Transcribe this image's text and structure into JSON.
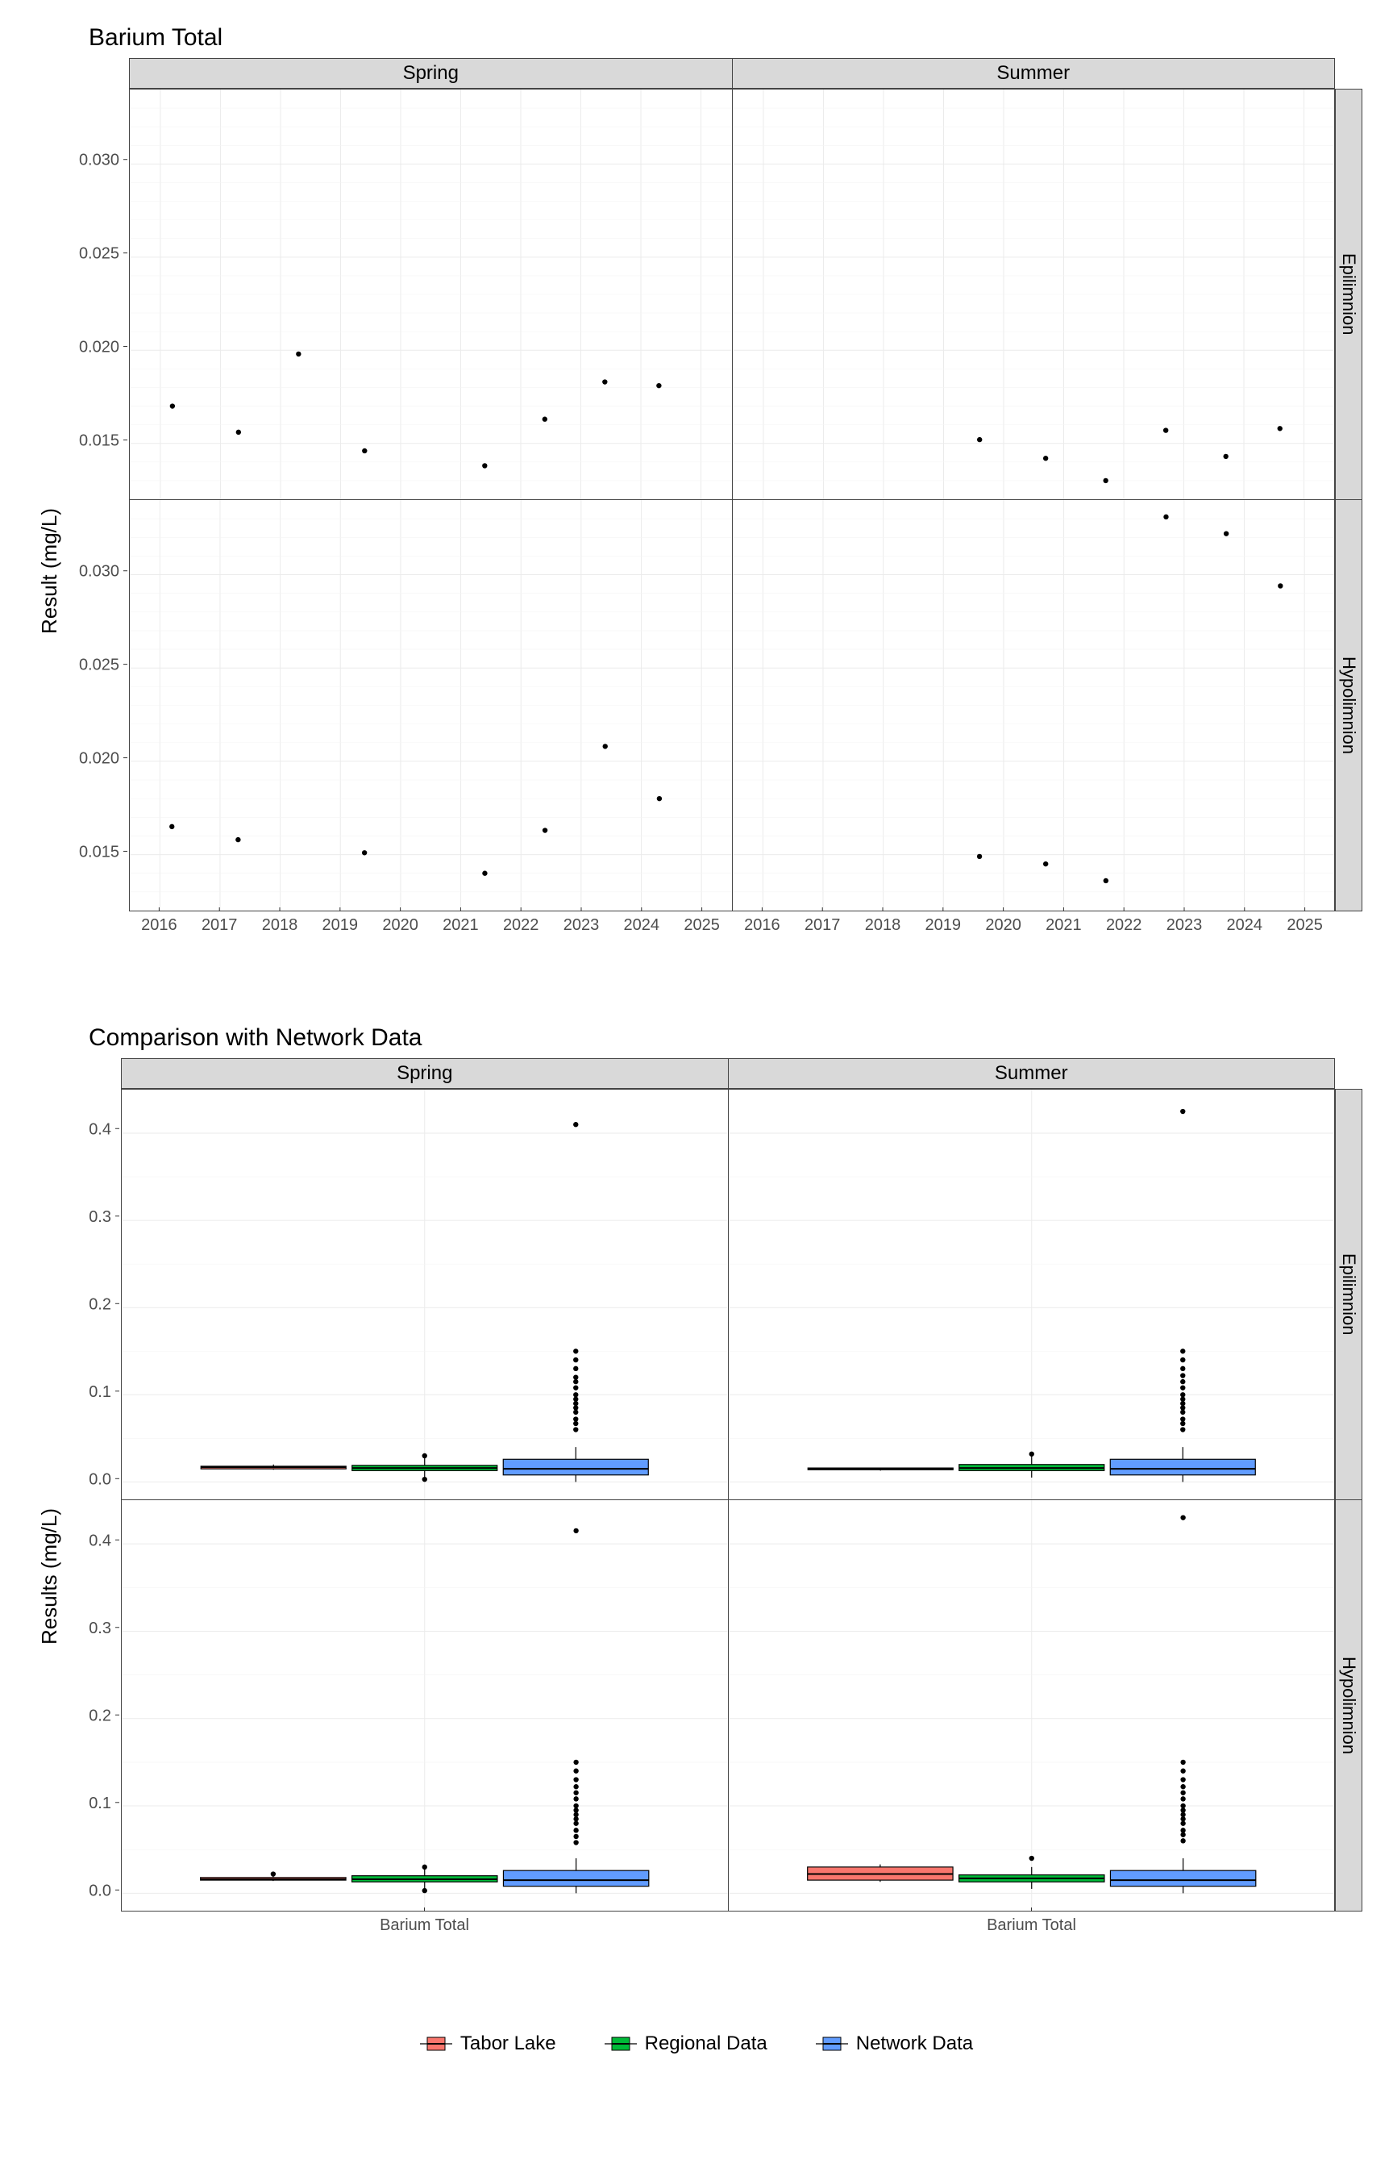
{
  "scatter": {
    "title": "Barium Total",
    "ylabel": "Result (mg/L)",
    "col_labels": [
      "Spring",
      "Summer"
    ],
    "row_labels": [
      "Epilimnion",
      "Hypolimnion"
    ],
    "xlim": [
      2015.5,
      2025.5
    ],
    "xticks": [
      2016,
      2017,
      2018,
      2019,
      2020,
      2021,
      2022,
      2023,
      2024,
      2025
    ],
    "ylim": [
      0.012,
      0.034
    ],
    "yticks": [
      0.015,
      0.02,
      0.025,
      0.03
    ],
    "grid_color": "#ebebeb",
    "point_color": "#000000",
    "point_radius": 3.2,
    "panels": {
      "spring_epi": [
        [
          2016.2,
          0.017
        ],
        [
          2017.3,
          0.0156
        ],
        [
          2018.3,
          0.0198
        ],
        [
          2019.4,
          0.0146
        ],
        [
          2021.4,
          0.0138
        ],
        [
          2022.4,
          0.0163
        ],
        [
          2023.4,
          0.0183
        ],
        [
          2024.3,
          0.0181
        ]
      ],
      "summer_epi": [
        [
          2019.6,
          0.0152
        ],
        [
          2020.7,
          0.0142
        ],
        [
          2021.7,
          0.013
        ],
        [
          2022.7,
          0.0157
        ],
        [
          2023.7,
          0.0143
        ],
        [
          2024.6,
          0.0158
        ]
      ],
      "spring_hypo": [
        [
          2016.2,
          0.0165
        ],
        [
          2017.3,
          0.0158
        ],
        [
          2019.4,
          0.0151
        ],
        [
          2021.4,
          0.014
        ],
        [
          2022.4,
          0.0163
        ],
        [
          2023.4,
          0.0208
        ],
        [
          2024.3,
          0.018
        ]
      ],
      "summer_hypo": [
        [
          2019.6,
          0.0149
        ],
        [
          2020.7,
          0.0145
        ],
        [
          2021.7,
          0.0136
        ],
        [
          2022.7,
          0.0331
        ],
        [
          2023.7,
          0.0322
        ],
        [
          2024.6,
          0.0294
        ]
      ]
    }
  },
  "box": {
    "title": "Comparison with Network Data",
    "ylabel": "Results (mg/L)",
    "col_labels": [
      "Spring",
      "Summer"
    ],
    "row_labels": [
      "Epilimnion",
      "Hypolimnion"
    ],
    "xtick_label": "Barium Total",
    "ylim": [
      -0.02,
      0.45
    ],
    "yticks": [
      0.0,
      0.1,
      0.2,
      0.3,
      0.4
    ],
    "series": [
      {
        "name": "Tabor Lake",
        "color": "#f8766d"
      },
      {
        "name": "Regional Data",
        "color": "#00ba38"
      },
      {
        "name": "Network Data",
        "color": "#619cff"
      }
    ],
    "box_width": 0.24,
    "x_positions": [
      0.25,
      0.5,
      0.75
    ],
    "panels": {
      "spring_epi": {
        "boxes": [
          {
            "min": 0.014,
            "q1": 0.015,
            "med": 0.017,
            "q3": 0.018,
            "max": 0.02
          },
          {
            "min": 0.005,
            "q1": 0.013,
            "med": 0.016,
            "q3": 0.019,
            "max": 0.028
          },
          {
            "min": 0.0,
            "q1": 0.008,
            "med": 0.015,
            "q3": 0.026,
            "max": 0.04
          }
        ],
        "outliers": [
          [
            0.5,
            0.03
          ],
          [
            0.5,
            0.003
          ],
          [
            0.75,
            0.06
          ],
          [
            0.75,
            0.067
          ],
          [
            0.75,
            0.072
          ],
          [
            0.75,
            0.08
          ],
          [
            0.75,
            0.085
          ],
          [
            0.75,
            0.09
          ],
          [
            0.75,
            0.095
          ],
          [
            0.75,
            0.1
          ],
          [
            0.75,
            0.108
          ],
          [
            0.75,
            0.115
          ],
          [
            0.75,
            0.12
          ],
          [
            0.75,
            0.13
          ],
          [
            0.75,
            0.14
          ],
          [
            0.75,
            0.15
          ],
          [
            0.75,
            0.41
          ]
        ]
      },
      "summer_epi": {
        "boxes": [
          {
            "min": 0.013,
            "q1": 0.014,
            "med": 0.015,
            "q3": 0.016,
            "max": 0.016
          },
          {
            "min": 0.005,
            "q1": 0.013,
            "med": 0.016,
            "q3": 0.02,
            "max": 0.03
          },
          {
            "min": 0.0,
            "q1": 0.008,
            "med": 0.015,
            "q3": 0.026,
            "max": 0.04
          }
        ],
        "outliers": [
          [
            0.5,
            0.032
          ],
          [
            0.75,
            0.06
          ],
          [
            0.75,
            0.067
          ],
          [
            0.75,
            0.072
          ],
          [
            0.75,
            0.08
          ],
          [
            0.75,
            0.085
          ],
          [
            0.75,
            0.09
          ],
          [
            0.75,
            0.095
          ],
          [
            0.75,
            0.1
          ],
          [
            0.75,
            0.108
          ],
          [
            0.75,
            0.115
          ],
          [
            0.75,
            0.122
          ],
          [
            0.75,
            0.13
          ],
          [
            0.75,
            0.14
          ],
          [
            0.75,
            0.15
          ],
          [
            0.75,
            0.425
          ]
        ]
      },
      "spring_hypo": {
        "boxes": [
          {
            "min": 0.014,
            "q1": 0.015,
            "med": 0.016,
            "q3": 0.018,
            "max": 0.021
          },
          {
            "min": 0.005,
            "q1": 0.013,
            "med": 0.016,
            "q3": 0.02,
            "max": 0.028
          },
          {
            "min": 0.0,
            "q1": 0.008,
            "med": 0.015,
            "q3": 0.026,
            "max": 0.04
          }
        ],
        "outliers": [
          [
            0.25,
            0.022
          ],
          [
            0.5,
            0.03
          ],
          [
            0.5,
            0.003
          ],
          [
            0.75,
            0.058
          ],
          [
            0.75,
            0.065
          ],
          [
            0.75,
            0.072
          ],
          [
            0.75,
            0.08
          ],
          [
            0.75,
            0.085
          ],
          [
            0.75,
            0.09
          ],
          [
            0.75,
            0.095
          ],
          [
            0.75,
            0.1
          ],
          [
            0.75,
            0.108
          ],
          [
            0.75,
            0.115
          ],
          [
            0.75,
            0.122
          ],
          [
            0.75,
            0.13
          ],
          [
            0.75,
            0.14
          ],
          [
            0.75,
            0.15
          ],
          [
            0.75,
            0.415
          ]
        ]
      },
      "summer_hypo": {
        "boxes": [
          {
            "min": 0.013,
            "q1": 0.015,
            "med": 0.022,
            "q3": 0.03,
            "max": 0.033
          },
          {
            "min": 0.005,
            "q1": 0.013,
            "med": 0.017,
            "q3": 0.021,
            "max": 0.03
          },
          {
            "min": 0.0,
            "q1": 0.008,
            "med": 0.015,
            "q3": 0.026,
            "max": 0.04
          }
        ],
        "outliers": [
          [
            0.5,
            0.04
          ],
          [
            0.75,
            0.06
          ],
          [
            0.75,
            0.067
          ],
          [
            0.75,
            0.072
          ],
          [
            0.75,
            0.08
          ],
          [
            0.75,
            0.085
          ],
          [
            0.75,
            0.09
          ],
          [
            0.75,
            0.095
          ],
          [
            0.75,
            0.1
          ],
          [
            0.75,
            0.108
          ],
          [
            0.75,
            0.115
          ],
          [
            0.75,
            0.122
          ],
          [
            0.75,
            0.13
          ],
          [
            0.75,
            0.14
          ],
          [
            0.75,
            0.15
          ],
          [
            0.75,
            0.43
          ]
        ]
      }
    }
  },
  "legend_label": {
    "tabor": "Tabor Lake",
    "regional": "Regional Data",
    "network": "Network Data"
  }
}
